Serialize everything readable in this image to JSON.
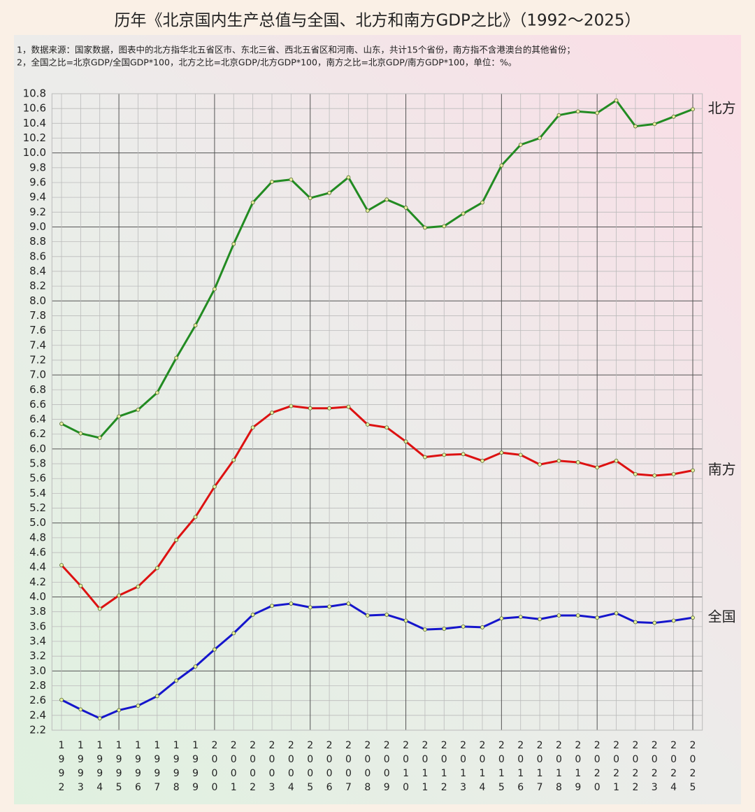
{
  "chart_data": {
    "type": "line",
    "title": "历年《北京国内生产总值与全国、北方和南方GDP之比》（1992～2025）",
    "notes": [
      "1，数据来源：国家数据，图表中的北方指华北五省区市、东北三省、西北五省区和河南、山东，共计15个省份，南方指不含港澳台的其他省份；",
      "2，全国之比=北京GDP/全国GDP*100，北方之比=北京GDP/北方GDP*100，南方之比=北京GDP/南方GDP*100，单位：%。"
    ],
    "categories": [
      "1992",
      "1993",
      "1994",
      "1995",
      "1996",
      "1997",
      "1998",
      "1999",
      "2000",
      "2001",
      "2002",
      "2003",
      "2004",
      "2005",
      "2006",
      "2007",
      "2008",
      "2009",
      "2010",
      "2011",
      "2012",
      "2013",
      "2014",
      "2015",
      "2016",
      "2017",
      "2018",
      "2019",
      "2020",
      "2021",
      "2022",
      "2023",
      "2024",
      "2025"
    ],
    "series": [
      {
        "name": "北方",
        "color": "#228b22",
        "values": [
          6.34,
          6.21,
          6.15,
          6.44,
          6.53,
          6.76,
          7.23,
          7.67,
          8.16,
          8.77,
          9.33,
          9.61,
          9.64,
          9.39,
          9.46,
          9.67,
          9.22,
          9.37,
          9.26,
          8.99,
          9.01,
          9.18,
          9.33,
          9.83,
          10.11,
          10.2,
          10.51,
          10.56,
          10.54,
          10.71,
          10.36,
          10.39,
          10.49,
          10.59
        ]
      },
      {
        "name": "南方",
        "color": "#dd1111",
        "values": [
          4.43,
          4.15,
          3.84,
          4.02,
          4.14,
          4.39,
          4.77,
          5.08,
          5.49,
          5.85,
          6.29,
          6.49,
          6.58,
          6.55,
          6.55,
          6.57,
          6.33,
          6.29,
          6.1,
          5.89,
          5.92,
          5.93,
          5.84,
          5.95,
          5.92,
          5.79,
          5.84,
          5.82,
          5.75,
          5.84,
          5.66,
          5.64,
          5.66,
          5.71
        ]
      },
      {
        "name": "全国",
        "color": "#1515cc",
        "values": [
          2.61,
          2.48,
          2.36,
          2.47,
          2.53,
          2.66,
          2.87,
          3.06,
          3.29,
          3.51,
          3.76,
          3.88,
          3.91,
          3.86,
          3.87,
          3.91,
          3.75,
          3.76,
          3.68,
          3.56,
          3.57,
          3.6,
          3.59,
          3.71,
          3.73,
          3.7,
          3.75,
          3.75,
          3.72,
          3.78,
          3.66,
          3.65,
          3.68,
          3.72
        ]
      }
    ],
    "ylim": [
      2.2,
      10.8
    ],
    "yticks": [
      2.2,
      2.4,
      2.6,
      2.8,
      {
        "value": 3,
        "label": "3.0"
      },
      3.2,
      3.4,
      3.6,
      3.8,
      {
        "value": 4,
        "label": "4.0"
      },
      4.2,
      4.4,
      4.6,
      4.8,
      {
        "value": 5,
        "label": "5.0"
      },
      5.2,
      5.4,
      5.6,
      5.8,
      {
        "value": 6,
        "label": "6.0"
      },
      6.2,
      6.4,
      6.6,
      6.8,
      {
        "value": 7,
        "label": "7.0"
      },
      7.2,
      7.4,
      7.6,
      7.8,
      {
        "value": 8,
        "label": "8.0"
      },
      8.2,
      8.4,
      8.6,
      8.8,
      {
        "value": 9,
        "label": "9.0"
      },
      9.2,
      9.4,
      9.6,
      9.8,
      {
        "value": 10,
        "label": "10.0"
      },
      10.2,
      10.4,
      10.6,
      10.8
    ],
    "grid": true,
    "legend": "line-end"
  }
}
